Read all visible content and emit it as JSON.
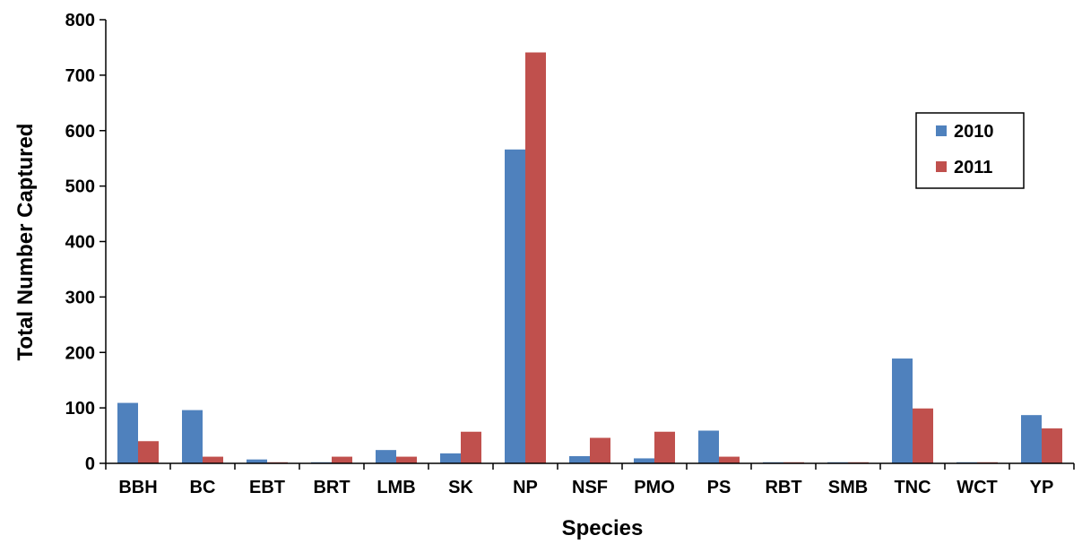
{
  "chart_data": {
    "type": "bar",
    "title": "",
    "xlabel": "Species",
    "ylabel": "Total Number Captured",
    "ylim": [
      0,
      800
    ],
    "yticks": [
      0,
      100,
      200,
      300,
      400,
      500,
      600,
      700,
      800
    ],
    "grid": false,
    "legend_position": "right",
    "categories": [
      "BBH",
      "BC",
      "EBT",
      "BRT",
      "LMB",
      "SK",
      "NP",
      "NSF",
      "PMO",
      "PS",
      "RBT",
      "SMB",
      "TNC",
      "WCT",
      "YP"
    ],
    "series": [
      {
        "name": "2010",
        "color": "#4F81BD",
        "values": [
          109,
          96,
          7,
          2,
          24,
          18,
          566,
          13,
          9,
          59,
          2,
          2,
          189,
          2,
          87
        ]
      },
      {
        "name": "2011",
        "color": "#C0504D",
        "values": [
          40,
          12,
          2,
          12,
          12,
          57,
          741,
          46,
          57,
          12,
          2,
          2,
          99,
          2,
          63
        ]
      }
    ]
  }
}
